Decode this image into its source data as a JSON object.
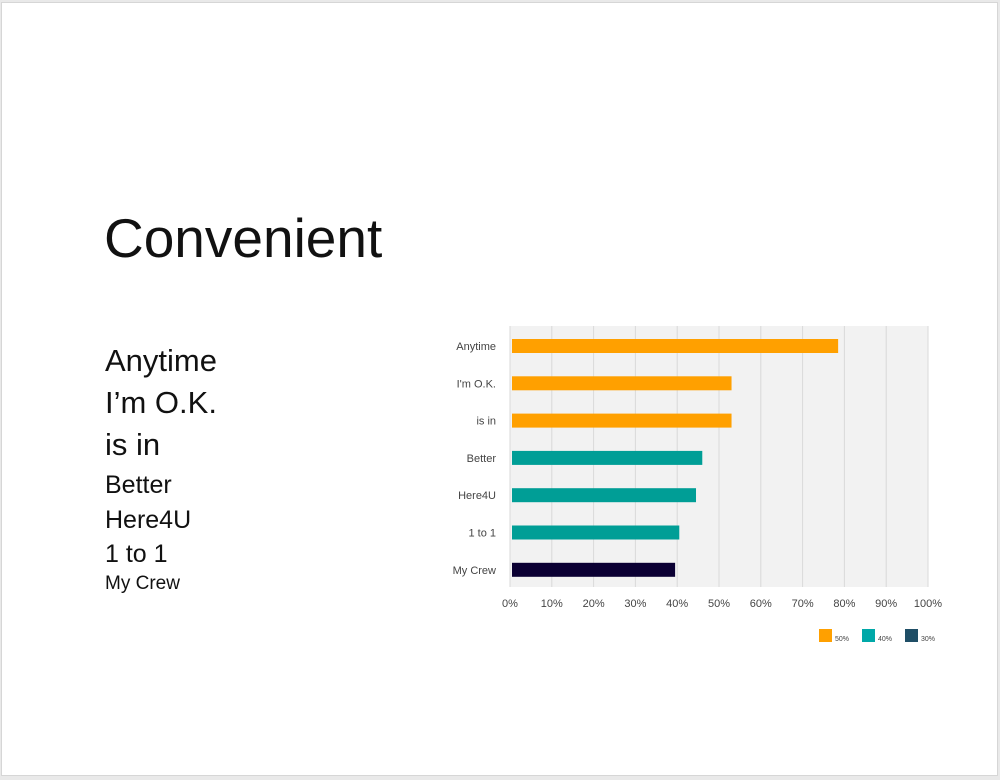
{
  "slide": {
    "title": "Convenient",
    "list_items": [
      "Anytime",
      "I’m O.K.",
      "is in",
      "Better",
      "Here4U",
      "1 to 1",
      "My Crew"
    ]
  },
  "chart_data": {
    "type": "bar",
    "orientation": "horizontal",
    "categories": [
      "Anytime",
      "I'm O.K.",
      "is in",
      "Better",
      "Here4U",
      "1 to 1",
      "My Crew"
    ],
    "values": [
      78.5,
      53,
      53,
      46,
      44.5,
      40.5,
      39.5
    ],
    "bar_colors": [
      "#FFA000",
      "#FFA000",
      "#FFA000",
      "#009E96",
      "#009E96",
      "#009E96",
      "#0B0033"
    ],
    "xlim": [
      0,
      100
    ],
    "x_ticks": [
      "0%",
      "10%",
      "20%",
      "30%",
      "40%",
      "50%",
      "60%",
      "70%",
      "80%",
      "90%",
      "100%"
    ],
    "grid": true,
    "plot_background": "#F2F2F2",
    "legend": {
      "placement": "bottom-right",
      "entries": [
        {
          "label": "50%",
          "color": "#FFA000"
        },
        {
          "label": "40%",
          "color": "#00A8A8"
        },
        {
          "label": "30%",
          "color": "#1F4E66"
        }
      ]
    }
  }
}
